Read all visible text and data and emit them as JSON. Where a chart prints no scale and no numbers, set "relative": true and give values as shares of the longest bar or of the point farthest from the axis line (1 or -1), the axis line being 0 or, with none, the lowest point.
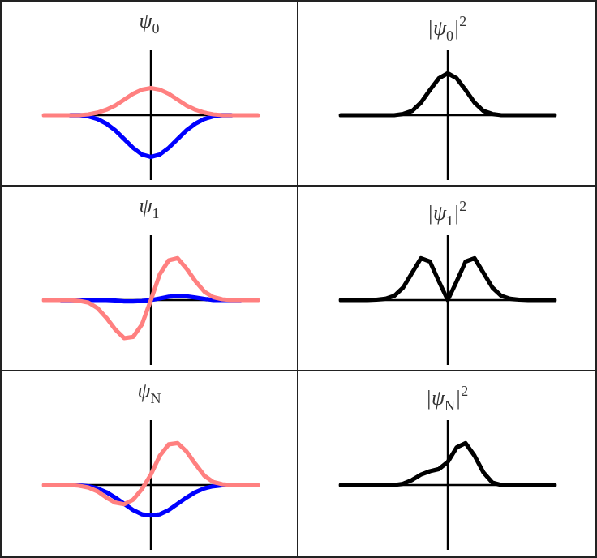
{
  "chart_data": [
    {
      "type": "line",
      "title": "ψ$_{0}$",
      "relative": true,
      "categories": [
        null,
        null,
        null,
        null,
        null,
        null,
        null,
        null,
        null,
        null,
        null,
        null,
        null,
        null,
        null,
        null,
        null,
        null,
        null,
        null,
        null,
        null,
        null,
        null,
        null
      ],
      "series": [
        {
          "color": "#ff8080",
          "values": [
            0,
            0,
            0,
            0,
            0,
            0.02,
            0.06,
            0.13,
            0.23,
            0.37,
            0.51,
            0.61,
            0.65,
            0.61,
            0.51,
            0.37,
            0.23,
            0.13,
            0.06,
            0.02,
            0,
            0,
            0,
            0,
            0
          ]
        },
        {
          "color": "#0000ff",
          "values": [
            null,
            null,
            null,
            0,
            0,
            -0.03,
            -0.09,
            -0.2,
            -0.36,
            -0.57,
            -0.78,
            -0.94,
            -1,
            -0.94,
            -0.78,
            -0.57,
            -0.36,
            -0.2,
            -0.09,
            -0.03,
            0,
            0,
            null,
            null,
            null
          ]
        }
      ]
    },
    {
      "type": "line",
      "title": "|ψ$_{0}$|$^{2}$",
      "relative": true,
      "categories": [
        null,
        null,
        null,
        null,
        null,
        null,
        null,
        null,
        null,
        null,
        null,
        null,
        null,
        null,
        null,
        null,
        null,
        null,
        null,
        null,
        null,
        null,
        null,
        null,
        null
      ],
      "series": [
        {
          "color": "#000000",
          "values": [
            0,
            0,
            0,
            0,
            0,
            0,
            0,
            0.03,
            0.1,
            0.3,
            0.6,
            0.88,
            1,
            0.88,
            0.6,
            0.3,
            0.1,
            0.03,
            0,
            0,
            0,
            0,
            0,
            0,
            0
          ]
        }
      ]
    },
    {
      "type": "line",
      "title": "ψ$_{1}$",
      "relative": true,
      "categories": [
        null,
        null,
        null,
        null,
        null,
        null,
        null,
        null,
        null,
        null,
        null,
        null,
        null,
        null,
        null,
        null,
        null,
        null,
        null,
        null,
        null,
        null,
        null,
        null,
        null
      ],
      "series": [
        {
          "color": "#ff8080",
          "values": [
            0,
            0,
            0,
            0,
            -0.02,
            -0.06,
            -0.19,
            -0.42,
            -0.7,
            -0.91,
            -0.88,
            -0.58,
            0,
            0.62,
            0.95,
            1,
            0.75,
            0.45,
            0.2,
            0.07,
            0.02,
            0,
            0,
            0,
            0
          ]
        },
        {
          "color": "#0000ff",
          "values": [
            null,
            null,
            0,
            0,
            0,
            0,
            0,
            0,
            -0.01,
            -0.03,
            -0.03,
            -0.02,
            0,
            0.04,
            0.08,
            0.1,
            0.09,
            0.06,
            0.03,
            0,
            0,
            0,
            0,
            null,
            null
          ]
        }
      ]
    },
    {
      "type": "line",
      "title": "|ψ$_{1}$|$^{2}$",
      "relative": true,
      "categories": [
        null,
        null,
        null,
        null,
        null,
        null,
        null,
        null,
        null,
        null,
        null,
        null,
        null,
        null,
        null,
        null,
        null,
        null,
        null,
        null,
        null,
        null,
        null,
        null,
        null
      ],
      "series": [
        {
          "color": "#000000",
          "values": [
            0,
            0,
            0,
            0,
            0.01,
            0.03,
            0.1,
            0.3,
            0.65,
            1,
            0.92,
            0.45,
            0,
            0.45,
            0.92,
            1,
            0.65,
            0.3,
            0.1,
            0.03,
            0.01,
            0,
            0,
            0,
            0
          ]
        }
      ]
    },
    {
      "type": "line",
      "title": "ψ$_{N}$",
      "relative": true,
      "categories": [
        null,
        null,
        null,
        null,
        null,
        null,
        null,
        null,
        null,
        null,
        null,
        null,
        null,
        null,
        null,
        null,
        null,
        null,
        null,
        null,
        null,
        null,
        null,
        null,
        null
      ],
      "series": [
        {
          "color": "#ff8080",
          "values": [
            0,
            0,
            0,
            0,
            -0.02,
            -0.06,
            -0.15,
            -0.3,
            -0.42,
            -0.46,
            -0.35,
            -0.1,
            0.25,
            0.7,
            0.97,
            1,
            0.8,
            0.5,
            0.22,
            0.07,
            0.02,
            0,
            0,
            0,
            0
          ]
        },
        {
          "color": "#0000ff",
          "values": [
            null,
            null,
            null,
            0,
            -0.01,
            -0.03,
            -0.08,
            -0.17,
            -0.3,
            -0.45,
            -0.6,
            -0.7,
            -0.73,
            -0.7,
            -0.6,
            -0.45,
            -0.3,
            -0.17,
            -0.08,
            -0.03,
            -0.01,
            0,
            0,
            null,
            null
          ]
        }
      ]
    },
    {
      "type": "line",
      "title": "|ψ$_{N}$|$^{2}$",
      "relative": true,
      "categories": [
        null,
        null,
        null,
        null,
        null,
        null,
        null,
        null,
        null,
        null,
        null,
        null,
        null,
        null,
        null,
        null,
        null,
        null,
        null,
        null,
        null,
        null,
        null,
        null,
        null
      ],
      "series": [
        {
          "color": "#000000",
          "values": [
            0,
            0,
            0,
            0,
            0,
            0,
            0,
            0.03,
            0.12,
            0.25,
            0.33,
            0.38,
            0.55,
            0.9,
            1,
            0.7,
            0.3,
            0.06,
            0,
            0,
            0,
            0,
            0,
            0,
            0
          ]
        }
      ]
    }
  ]
}
